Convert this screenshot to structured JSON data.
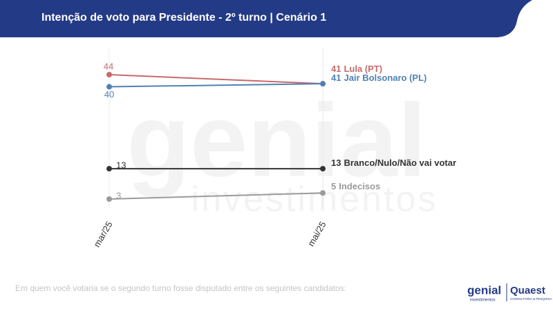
{
  "header": {
    "title": "Intenção de voto para Presidente - 2º turno | Cenário 1"
  },
  "chart_data": {
    "type": "line",
    "categories": [
      "mar/25",
      "mai/25"
    ],
    "series": [
      {
        "name": "Lula (PT)",
        "color": "#c8696b",
        "values": [
          44,
          41
        ]
      },
      {
        "name": "Jair Bolsonaro (PL)",
        "color": "#4f81b3",
        "values": [
          40,
          41
        ]
      },
      {
        "name": "Branco/Nulo/Não vai votar",
        "color": "#333333",
        "values": [
          13,
          13
        ]
      },
      {
        "name": "Indecisos",
        "color": "#9a9a9a",
        "values": [
          3,
          5
        ]
      }
    ],
    "grid": true
  },
  "watermark": {
    "line1": "genial",
    "line2": "investimentos"
  },
  "footer": {
    "note": "Em quem você votaria se o segundo turno fosse disputado entre os seguintes candidatos:"
  },
  "logos": {
    "genial": "genial",
    "genial_sub": "investimentos",
    "quaest": "Quaest",
    "quaest_sub": "CONSULTORIA & PESQUISA"
  }
}
